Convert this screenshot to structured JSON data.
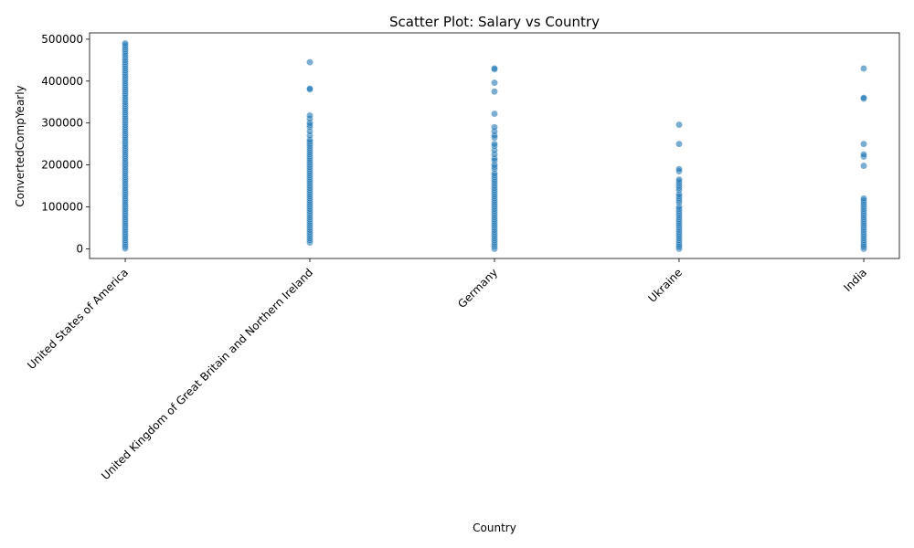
{
  "chart_data": {
    "type": "scatter",
    "title": "Scatter Plot: Salary vs Country",
    "xlabel": "Country",
    "ylabel": "ConvertedCompYearly",
    "categories": [
      "United States of America",
      "United Kingdom of Great Britain and Northern Ireland",
      "Germany",
      "Ukraine",
      "India"
    ],
    "ylim": [
      -23000,
      515000
    ],
    "yticks": [
      0,
      100000,
      200000,
      300000,
      400000,
      500000
    ],
    "ytick_labels": [
      "0",
      "100000",
      "200000",
      "300000",
      "400000",
      "500000"
    ],
    "grid": false,
    "color": "#1f77b4",
    "series": [
      {
        "category": "United States of America",
        "values": [
          1000,
          5000,
          10000,
          15000,
          20000,
          25000,
          30000,
          35000,
          40000,
          45000,
          50000,
          55000,
          60000,
          65000,
          70000,
          75000,
          80000,
          85000,
          90000,
          95000,
          100000,
          105000,
          110000,
          115000,
          120000,
          125000,
          130000,
          135000,
          140000,
          145000,
          150000,
          155000,
          160000,
          165000,
          170000,
          175000,
          180000,
          185000,
          190000,
          195000,
          200000,
          205000,
          210000,
          215000,
          220000,
          225000,
          230000,
          235000,
          240000,
          245000,
          250000,
          255000,
          260000,
          265000,
          270000,
          275000,
          280000,
          285000,
          290000,
          295000,
          300000,
          305000,
          310000,
          315000,
          320000,
          325000,
          330000,
          335000,
          340000,
          345000,
          350000,
          355000,
          360000,
          365000,
          370000,
          375000,
          380000,
          385000,
          390000,
          395000,
          400000,
          405000,
          410000,
          415000,
          420000,
          425000,
          430000,
          435000,
          440000,
          445000,
          450000,
          455000,
          460000,
          465000,
          470000,
          475000,
          480000,
          485000,
          490000
        ]
      },
      {
        "category": "United Kingdom of Great Britain and Northern Ireland",
        "values": [
          15000,
          20000,
          25000,
          30000,
          35000,
          40000,
          45000,
          50000,
          55000,
          60000,
          65000,
          70000,
          75000,
          80000,
          85000,
          90000,
          95000,
          100000,
          105000,
          110000,
          115000,
          120000,
          125000,
          130000,
          135000,
          140000,
          145000,
          150000,
          155000,
          160000,
          165000,
          170000,
          175000,
          180000,
          185000,
          190000,
          195000,
          200000,
          205000,
          210000,
          215000,
          220000,
          225000,
          230000,
          235000,
          240000,
          245000,
          250000,
          255000,
          260000,
          270000,
          280000,
          290000,
          295000,
          300000,
          310000,
          318000,
          380000,
          382000,
          445000
        ]
      },
      {
        "category": "Germany",
        "values": [
          0,
          5000,
          10000,
          15000,
          20000,
          25000,
          30000,
          35000,
          40000,
          45000,
          50000,
          55000,
          60000,
          65000,
          70000,
          75000,
          80000,
          85000,
          90000,
          95000,
          100000,
          105000,
          110000,
          115000,
          120000,
          125000,
          130000,
          135000,
          140000,
          145000,
          150000,
          155000,
          160000,
          165000,
          170000,
          175000,
          180000,
          190000,
          195000,
          200000,
          210000,
          215000,
          225000,
          235000,
          245000,
          250000,
          265000,
          270000,
          280000,
          290000,
          322000,
          375000,
          396000,
          428000,
          430000
        ]
      },
      {
        "category": "Ukraine",
        "values": [
          0,
          3000,
          6000,
          10000,
          15000,
          20000,
          25000,
          30000,
          35000,
          40000,
          45000,
          50000,
          55000,
          60000,
          65000,
          70000,
          75000,
          80000,
          85000,
          90000,
          95000,
          100000,
          110000,
          115000,
          120000,
          125000,
          130000,
          140000,
          145000,
          150000,
          155000,
          160000,
          165000,
          185000,
          190000,
          250000,
          296000
        ]
      },
      {
        "category": "India",
        "values": [
          0,
          3000,
          6000,
          10000,
          15000,
          20000,
          25000,
          30000,
          35000,
          40000,
          45000,
          50000,
          55000,
          60000,
          65000,
          70000,
          75000,
          80000,
          85000,
          90000,
          95000,
          100000,
          105000,
          110000,
          115000,
          120000,
          198000,
          220000,
          225000,
          250000,
          358000,
          360000,
          430000
        ]
      }
    ]
  }
}
